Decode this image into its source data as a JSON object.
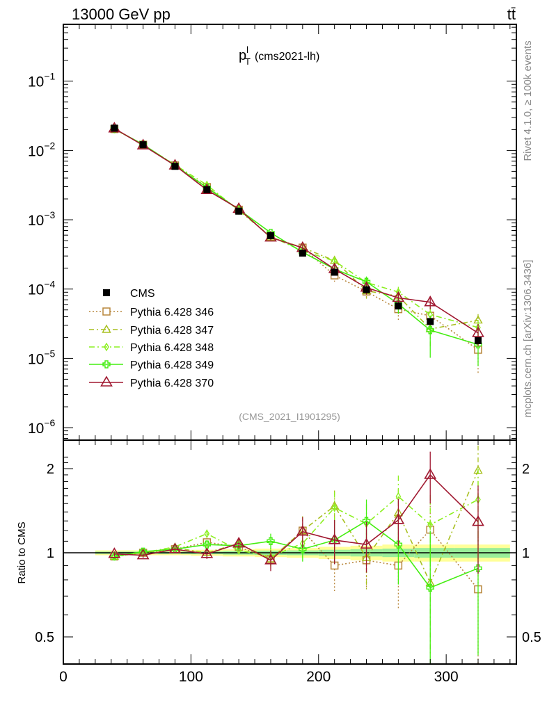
{
  "header": {
    "left": "13000 GeV pp",
    "right": "tt̄"
  },
  "side_labels": {
    "rivet": "Rivet 4.1.0, ≥ 100k events",
    "mcplots": "mcplots.cern.ch [arXiv:1306.3436]"
  },
  "chart_data": {
    "type": "line",
    "title_main": "p",
    "title_sup": "l",
    "title_sub": "T",
    "title_rest": "(cms2021-lh)",
    "analysis": "(CMS_2021_I1901295)",
    "xlabel": "",
    "ylabel_ratio": "Ratio to CMS",
    "xlim": [
      0,
      355
    ],
    "ylim_upper_log10": [
      -6.18,
      -0.18
    ],
    "ylim_ratio": [
      0.46,
      2.25
    ],
    "x_ticks": [
      "0",
      "100",
      "200",
      "300"
    ],
    "x_tick_values": [
      0,
      100,
      200,
      300
    ],
    "y_ticks_upper": [
      {
        "base": "10",
        "exp": "−1",
        "value": -1
      },
      {
        "base": "10",
        "exp": "−2",
        "value": -2
      },
      {
        "base": "10",
        "exp": "−3",
        "value": -3
      },
      {
        "base": "10",
        "exp": "−4",
        "value": -4
      },
      {
        "base": "10",
        "exp": "−5",
        "value": -5
      },
      {
        "base": "10",
        "exp": "−6",
        "value": -6
      }
    ],
    "y_ticks_ratio": [
      {
        "label": "2",
        "value": 2
      },
      {
        "label": "1",
        "value": 1
      },
      {
        "label": "0.5",
        "value": 0.5
      }
    ],
    "x": [
      40,
      62.5,
      87.5,
      112.5,
      137.5,
      162.5,
      187.5,
      212.5,
      237.5,
      262.5,
      287.5,
      325
    ],
    "data": {
      "name": "CMS",
      "values": [
        0.021,
        0.0121,
        0.0059,
        0.00272,
        0.00133,
        0.00059,
        0.00033,
        0.000175,
        9.8e-05,
        5.7e-05,
        3.4e-05,
        1.8e-05
      ],
      "rel_err_inner": [
        0.01,
        0.01,
        0.01,
        0.012,
        0.015,
        0.018,
        0.02,
        0.025,
        0.03,
        0.035,
        0.04,
        0.04
      ],
      "rel_err_outer": [
        0.02,
        0.02,
        0.02,
        0.025,
        0.03,
        0.035,
        0.04,
        0.05,
        0.06,
        0.07,
        0.07,
        0.07
      ]
    },
    "series": [
      {
        "name": "Pythia 6.428 346",
        "color": "#b8863b",
        "dash": "2,3",
        "marker": "square",
        "ratio": [
          0.97,
          1.0,
          1.03,
          1.09,
          1.05,
          0.95,
          1.2,
          0.9,
          0.94,
          0.9,
          1.21,
          0.74
        ],
        "ratio_err": [
          0.02,
          0.02,
          0.03,
          0.04,
          0.05,
          0.07,
          0.15,
          0.17,
          0.2,
          0.27,
          0.35,
          0.4
        ]
      },
      {
        "name": "Pythia 6.428 347",
        "color": "#a8c020",
        "dash": "7,4,2,4",
        "marker": "triangle-small",
        "ratio": [
          0.97,
          1.0,
          1.04,
          1.0,
          1.08,
          0.95,
          1.2,
          1.47,
          0.96,
          1.39,
          0.78,
          1.97
        ],
        "ratio_err": [
          0.02,
          0.02,
          0.03,
          0.04,
          0.05,
          0.07,
          0.15,
          0.2,
          0.22,
          0.3,
          0.35,
          0.45
        ]
      },
      {
        "name": "Pythia 6.428 348",
        "color": "#8cf020",
        "dash": "8,4,2,4",
        "marker": "diamond",
        "ratio": [
          0.97,
          1.0,
          1.05,
          1.17,
          1.02,
          0.97,
          1.08,
          1.45,
          1.27,
          1.59,
          1.26,
          1.55
        ],
        "ratio_err": [
          0.02,
          0.02,
          0.03,
          0.04,
          0.05,
          0.07,
          0.12,
          0.2,
          0.22,
          0.3,
          0.35,
          0.45
        ]
      },
      {
        "name": "Pythia 6.428 349",
        "color": "#44ee11",
        "dash": "",
        "marker": "plus",
        "ratio": [
          0.97,
          1.01,
          1.03,
          1.07,
          1.06,
          1.1,
          1.03,
          1.11,
          1.3,
          1.07,
          0.75,
          0.88
        ],
        "ratio_err": [
          0.02,
          0.02,
          0.03,
          0.04,
          0.05,
          0.07,
          0.1,
          0.2,
          0.25,
          0.3,
          0.45,
          0.45
        ]
      },
      {
        "name": "Pythia 6.428 370",
        "color": "#a01830",
        "dash": "",
        "marker": "triangle",
        "ratio": [
          0.99,
          0.98,
          1.03,
          0.99,
          1.08,
          0.94,
          1.19,
          1.11,
          1.07,
          1.31,
          1.9,
          1.29
        ],
        "ratio_err": [
          0.02,
          0.02,
          0.03,
          0.04,
          0.05,
          0.08,
          0.15,
          0.2,
          0.22,
          0.25,
          0.4,
          0.45
        ]
      }
    ],
    "legend_position": "lower-left"
  }
}
